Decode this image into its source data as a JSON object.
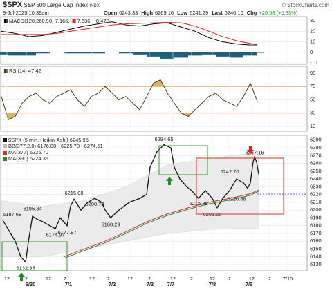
{
  "header": {
    "symbol": "$SPX",
    "name": "S&P 500 Large Cap Index",
    "exchange": "INDX",
    "date": "9-Jul-2025 10:39am",
    "quote": [
      {
        "label": "Open",
        "value": "6243.33"
      },
      {
        "label": "High",
        "value": "6269.16"
      },
      {
        "label": "Low",
        "value": "6241.29"
      },
      {
        "label": "Last",
        "value": "6246.10"
      },
      {
        "label": "Chg",
        "value": "+20.58 (+0.33%)"
      }
    ],
    "copyright": "© StockCharts.com"
  },
  "chart_data": [
    {
      "type": "line",
      "legend": "inline",
      "xlim": [
        0,
        440
      ],
      "ylim": [
        -11.3,
        34
      ],
      "yticks": [
        -10,
        0,
        10,
        20,
        30
      ],
      "series": [
        {
          "name": "-0.470",
          "color": "#1f5f7a",
          "style": "bar",
          "x": [
            0,
            20,
            40,
            60,
            80,
            100,
            120,
            140,
            160,
            180,
            200,
            220,
            240,
            260,
            280,
            300,
            320,
            340,
            360,
            370
          ],
          "values": [
            -2,
            -3,
            -3,
            -1,
            0,
            -1,
            -1,
            -1,
            0,
            -1,
            -2,
            -4,
            -6,
            -5,
            -3,
            -2,
            -4,
            -5,
            -3,
            -0.47
          ]
        },
        {
          "name": "MACD(120,260,90) 7.166,",
          "color": "#000000",
          "style": "line",
          "x": [
            0,
            20,
            40,
            60,
            80,
            100,
            120,
            140,
            160,
            180,
            200,
            220,
            240,
            260,
            280,
            300,
            320,
            340,
            360,
            370
          ],
          "values": [
            20,
            18,
            15,
            16,
            19,
            22,
            25,
            27,
            29,
            26,
            25,
            27,
            28,
            24,
            20,
            14,
            10,
            8,
            7,
            7.166
          ]
        },
        {
          "name": "7.636,",
          "color": "#e02020",
          "style": "line",
          "x": [
            0,
            20,
            40,
            60,
            80,
            100,
            120,
            140,
            160,
            180,
            200,
            220,
            240,
            260,
            280,
            300,
            320,
            340,
            360,
            370
          ],
          "values": [
            17,
            17,
            17,
            17,
            18,
            20,
            22,
            24,
            26,
            27,
            27.5,
            28,
            28.5,
            28,
            25,
            20,
            15,
            11,
            8.5,
            7.636
          ]
        }
      ]
    },
    {
      "type": "line",
      "legend": "inline",
      "xlim": [
        0,
        440
      ],
      "ylim": [
        2.7,
        100.4
      ],
      "yticks": [
        10,
        30,
        50,
        70,
        90
      ],
      "fill_levels": [
        30,
        70
      ],
      "fill_color": "#d9b85a",
      "series": [
        {
          "name": "RSI(14) 47.42",
          "color": "#4a3b10",
          "style": "line",
          "x": [
            0,
            10,
            20,
            30,
            40,
            50,
            60,
            70,
            80,
            90,
            100,
            110,
            120,
            130,
            140,
            150,
            160,
            170,
            180,
            190,
            200,
            210,
            220,
            230,
            240,
            250,
            260,
            270,
            280,
            290,
            300,
            310,
            320,
            330,
            340,
            350,
            360,
            370
          ],
          "values": [
            55,
            20,
            25,
            45,
            55,
            60,
            50,
            45,
            55,
            60,
            65,
            50,
            40,
            55,
            60,
            70,
            60,
            50,
            55,
            45,
            35,
            55,
            75,
            80,
            60,
            45,
            30,
            25,
            35,
            45,
            55,
            60,
            50,
            45,
            40,
            55,
            75,
            47.42
          ]
        }
      ]
    },
    {
      "type": "line",
      "legend": "stacked",
      "xlim": [
        0,
        440
      ],
      "ylim": [
        6122,
        6296
      ],
      "yticks": [
        6130,
        6140,
        6150,
        6160,
        6170,
        6180,
        6190,
        6200,
        6210,
        6220,
        6230,
        6240,
        6250,
        6260,
        6270,
        6280,
        6290
      ],
      "xticks": [
        {
          "value": 8,
          "label": "12"
        },
        {
          "value": 36,
          "label": "2"
        },
        {
          "value": 68,
          "label": "12"
        },
        {
          "value": 92,
          "label": "2"
        },
        {
          "value": 131,
          "label": "12"
        },
        {
          "value": 155,
          "label": "2"
        },
        {
          "value": 186,
          "label": "12"
        },
        {
          "value": 214,
          "label": "2"
        },
        {
          "value": 248,
          "label": "12"
        },
        {
          "value": 275,
          "label": "2"
        },
        {
          "value": 305,
          "label": "12"
        },
        {
          "value": 330,
          "label": "2"
        },
        {
          "value": 362,
          "label": "12"
        },
        {
          "value": 388,
          "label": "2"
        },
        {
          "value": 414,
          "label": "7/10"
        }
      ],
      "xdates": [
        {
          "value": 42,
          "label": "6/30"
        },
        {
          "value": 97,
          "label": "7/1"
        },
        {
          "value": 160,
          "label": "7/2"
        },
        {
          "value": 215,
          "label": "7/3"
        },
        {
          "value": 245,
          "label": "7/7"
        },
        {
          "value": 305,
          "label": "7/8"
        },
        {
          "value": 358,
          "label": "7/9"
        }
      ],
      "grid": true,
      "series": [
        {
          "name": "$SPX (5 min, Heikin-Ashi) 6245.95",
          "color": "#111111",
          "style": "line",
          "x": [
            2,
            10,
            20,
            28,
            35,
            40,
            45,
            52,
            60,
            70,
            78,
            85,
            95,
            100,
            105,
            115,
            125,
            135,
            145,
            150,
            158,
            170,
            185,
            200,
            210,
            215,
            225,
            235,
            245,
            250,
            258,
            268,
            275,
            285,
            295,
            305,
            312,
            320,
            330,
            340,
            350,
            356,
            360,
            364,
            366,
            369,
            372
          ],
          "values": [
            6187,
            6175,
            6160,
            6140,
            6133,
            6165,
            6192,
            6188,
            6185,
            6180,
            6176,
            6190,
            6180,
            6205,
            6214,
            6200,
            6210,
            6215,
            6210,
            6200,
            6190,
            6200,
            6210,
            6215,
            6220,
            6255,
            6275,
            6284,
            6280,
            6255,
            6240,
            6230,
            6225,
            6215,
            6225,
            6215,
            6203,
            6215,
            6225,
            6240,
            6235,
            6228,
            6235,
            6262,
            6268,
            6262,
            6246
          ]
        },
        {
          "name": "BB(377,2.0) 6176.88 - 6225.70 - 6274.51",
          "color": "#d8d8d8",
          "style": "band",
          "x": [
            0,
            60,
            120,
            180,
            240,
            300,
            372
          ],
          "values": [
            6212,
            6205,
            6212,
            6230,
            6258,
            6266,
            6274.51
          ],
          "lower": [
            6140,
            6140,
            6150,
            6160,
            6170,
            6175,
            6176.88
          ]
        },
        {
          "name": "MA(377) 6225.70",
          "color": "#d03030",
          "style": "line",
          "x": [
            90,
            120,
            150,
            180,
            210,
            240,
            270,
            300,
            330,
            360,
            372
          ],
          "values": [
            6140,
            6150,
            6160,
            6172,
            6185,
            6195,
            6203,
            6210,
            6215,
            6221,
            6225.7
          ]
        },
        {
          "name": "MA(390) 6224.36",
          "color": "#2e8b2e",
          "style": "line",
          "x": [
            90,
            120,
            150,
            180,
            210,
            240,
            270,
            300,
            330,
            360,
            372
          ],
          "values": [
            6138,
            6148,
            6158,
            6170,
            6183,
            6193,
            6201,
            6208,
            6213,
            6219,
            6224.36
          ]
        }
      ],
      "annotations": {
        "x": [
          2,
          45,
          35,
          78,
          95,
          105,
          135,
          158,
          235,
          285,
          305,
          330,
          340,
          366
        ],
        "values": [
          6187.68,
          6195.34,
          6132.35,
          6174.97,
          6177.97,
          6215.08,
          6200.78,
          6188.29,
          6284.65,
          6215.29,
          6201,
          6242.7,
          6220.88,
          6267.16
        ],
        "value_labels": [
          "6187.68",
          "6195.34",
          "6132.35",
          "6174.97",
          "6177.97",
          "6215.08",
          "6200.78",
          "6188.29",
          "6284.65",
          "6215.29",
          "6201.00",
          "6242.70",
          "6220.88",
          "6267.16"
        ]
      }
    }
  ]
}
